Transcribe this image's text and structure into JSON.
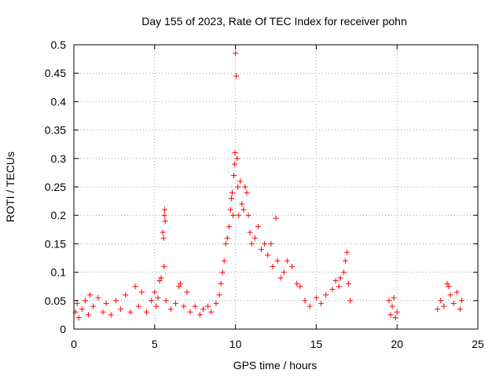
{
  "chart_data": {
    "type": "scatter",
    "title": "Day 155 of 2023, Rate Of TEC Index for receiver pohn",
    "xlabel": "GPS time / hours",
    "ylabel": "ROTI / TECUs",
    "xlim": [
      0,
      25
    ],
    "ylim": [
      0,
      0.5
    ],
    "x_ticks": [
      0,
      5,
      10,
      15,
      20,
      25
    ],
    "y_ticks": [
      0,
      0.05,
      0.1,
      0.15,
      0.2,
      0.25,
      0.3,
      0.35,
      0.4,
      0.45,
      0.5
    ],
    "x_tick_labels": [
      "0",
      "5",
      "10",
      "15",
      "20",
      "25"
    ],
    "y_tick_labels": [
      "0",
      "0.05",
      "0.1",
      "0.15",
      "0.2",
      "0.25",
      "0.3",
      "0.35",
      "0.4",
      "0.45",
      "0.5"
    ],
    "grid": true,
    "marker": "+",
    "color": "#ff0000",
    "series": [
      {
        "points": [
          [
            0.1,
            0.03
          ],
          [
            0.2,
            0.045
          ],
          [
            0.3,
            0.02
          ],
          [
            0.5,
            0.035
          ],
          [
            0.7,
            0.05
          ],
          [
            0.9,
            0.025
          ],
          [
            1.0,
            0.06
          ],
          [
            1.2,
            0.04
          ],
          [
            1.5,
            0.055
          ],
          [
            1.8,
            0.03
          ],
          [
            2.0,
            0.045
          ],
          [
            2.3,
            0.025
          ],
          [
            2.6,
            0.05
          ],
          [
            2.9,
            0.035
          ],
          [
            3.2,
            0.06
          ],
          [
            3.5,
            0.03
          ],
          [
            3.8,
            0.075
          ],
          [
            4.0,
            0.04
          ],
          [
            4.2,
            0.065
          ],
          [
            4.5,
            0.03
          ],
          [
            4.8,
            0.05
          ],
          [
            5.0,
            0.065
          ],
          [
            5.1,
            0.04
          ],
          [
            5.2,
            0.055
          ],
          [
            5.3,
            0.085
          ],
          [
            5.4,
            0.09
          ],
          [
            5.5,
            0.17
          ],
          [
            5.55,
            0.16
          ],
          [
            5.6,
            0.2
          ],
          [
            5.62,
            0.21
          ],
          [
            5.65,
            0.19
          ],
          [
            5.58,
            0.11
          ],
          [
            5.7,
            0.05
          ],
          [
            6.0,
            0.035
          ],
          [
            6.3,
            0.045
          ],
          [
            6.5,
            0.075
          ],
          [
            6.6,
            0.08
          ],
          [
            6.8,
            0.04
          ],
          [
            7.0,
            0.065
          ],
          [
            7.2,
            0.03
          ],
          [
            7.5,
            0.04
          ],
          [
            7.8,
            0.025
          ],
          [
            8.0,
            0.035
          ],
          [
            8.3,
            0.04
          ],
          [
            8.5,
            0.03
          ],
          [
            8.8,
            0.045
          ],
          [
            9.0,
            0.06
          ],
          [
            9.1,
            0.08
          ],
          [
            9.2,
            0.1
          ],
          [
            9.3,
            0.12
          ],
          [
            9.4,
            0.15
          ],
          [
            9.5,
            0.16
          ],
          [
            9.6,
            0.18
          ],
          [
            9.7,
            0.21
          ],
          [
            9.75,
            0.23
          ],
          [
            9.8,
            0.24
          ],
          [
            9.85,
            0.2
          ],
          [
            9.9,
            0.27
          ],
          [
            9.95,
            0.29
          ],
          [
            9.97,
            0.31
          ],
          [
            10.0,
            0.485
          ],
          [
            10.05,
            0.445
          ],
          [
            10.1,
            0.3
          ],
          [
            10.15,
            0.25
          ],
          [
            10.2,
            0.2
          ],
          [
            10.3,
            0.26
          ],
          [
            10.4,
            0.22
          ],
          [
            10.5,
            0.21
          ],
          [
            10.6,
            0.25
          ],
          [
            10.7,
            0.24
          ],
          [
            10.8,
            0.2
          ],
          [
            10.9,
            0.17
          ],
          [
            11.0,
            0.15
          ],
          [
            11.2,
            0.16
          ],
          [
            11.4,
            0.18
          ],
          [
            11.6,
            0.14
          ],
          [
            11.8,
            0.15
          ],
          [
            12.0,
            0.13
          ],
          [
            12.2,
            0.15
          ],
          [
            12.3,
            0.11
          ],
          [
            12.5,
            0.195
          ],
          [
            12.6,
            0.12
          ],
          [
            12.8,
            0.09
          ],
          [
            13.0,
            0.1
          ],
          [
            13.2,
            0.12
          ],
          [
            13.5,
            0.11
          ],
          [
            13.8,
            0.08
          ],
          [
            14.0,
            0.075
          ],
          [
            14.3,
            0.05
          ],
          [
            14.6,
            0.04
          ],
          [
            15.0,
            0.055
          ],
          [
            15.3,
            0.045
          ],
          [
            15.6,
            0.06
          ],
          [
            16.0,
            0.07
          ],
          [
            16.2,
            0.085
          ],
          [
            16.4,
            0.075
          ],
          [
            16.5,
            0.09
          ],
          [
            16.7,
            0.1
          ],
          [
            16.8,
            0.12
          ],
          [
            16.9,
            0.135
          ],
          [
            17.0,
            0.08
          ],
          [
            17.1,
            0.05
          ],
          [
            19.5,
            0.05
          ],
          [
            19.6,
            0.025
          ],
          [
            19.7,
            0.04
          ],
          [
            19.8,
            0.055
          ],
          [
            19.9,
            0.02
          ],
          [
            20.0,
            0.03
          ],
          [
            22.5,
            0.035
          ],
          [
            22.7,
            0.05
          ],
          [
            22.9,
            0.04
          ],
          [
            23.1,
            0.08
          ],
          [
            23.2,
            0.075
          ],
          [
            23.3,
            0.06
          ],
          [
            23.5,
            0.045
          ],
          [
            23.7,
            0.065
          ],
          [
            23.9,
            0.035
          ],
          [
            24.0,
            0.05
          ]
        ]
      }
    ]
  }
}
